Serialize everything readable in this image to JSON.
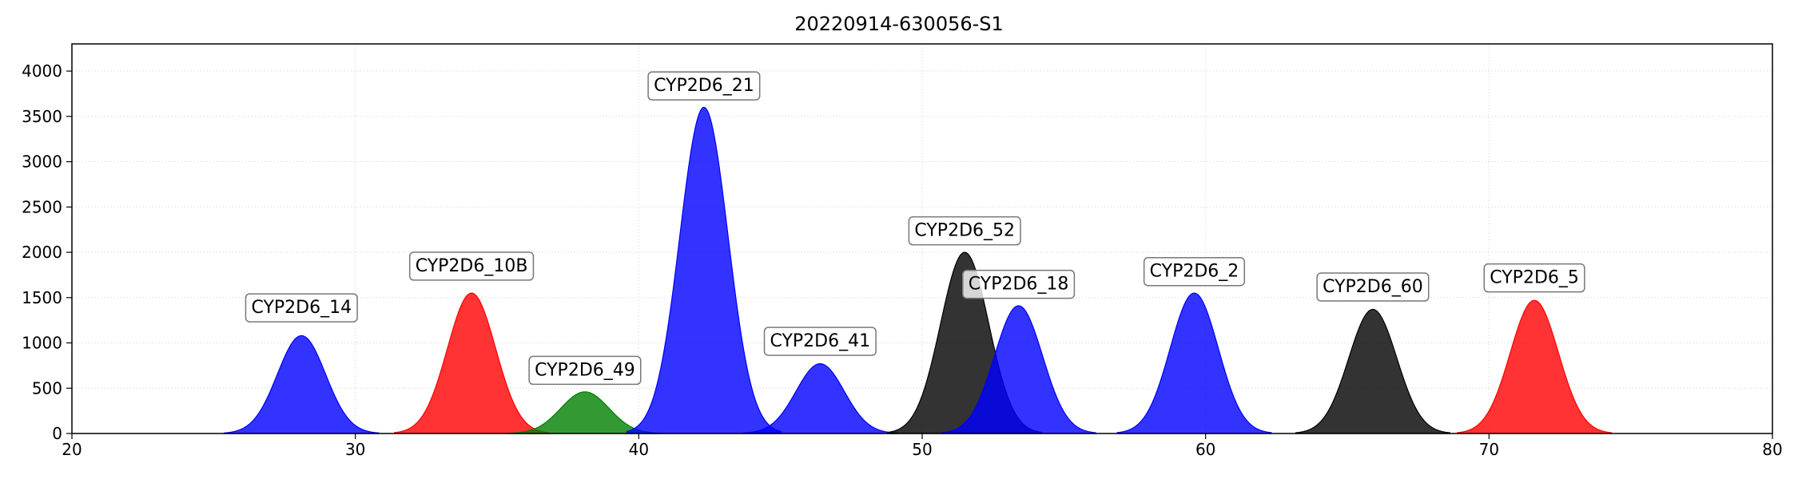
{
  "chart_data": {
    "type": "area",
    "title": "20220914-630056-S1",
    "xlabel": "",
    "ylabel": "",
    "xlim": [
      20,
      80
    ],
    "ylim": [
      0,
      4300
    ],
    "xticks": [
      20,
      30,
      40,
      50,
      60,
      70,
      80
    ],
    "yticks": [
      0,
      500,
      1000,
      1500,
      2000,
      2500,
      3000,
      3500,
      4000
    ],
    "grid": true,
    "peaks": [
      {
        "label": "CYP2D6_14",
        "x": 28.1,
        "height": 1080,
        "sigma": 0.85,
        "color": "#0000ff",
        "label_y": 1400
      },
      {
        "label": "CYP2D6_10B",
        "x": 34.1,
        "height": 1550,
        "sigma": 0.85,
        "color": "#ff0000",
        "label_y": 1860
      },
      {
        "label": "CYP2D6_49",
        "x": 38.1,
        "height": 460,
        "sigma": 0.85,
        "color": "#008000",
        "label_y": 710
      },
      {
        "label": "CYP2D6_21",
        "x": 42.3,
        "height": 3600,
        "sigma": 0.85,
        "color": "#0000ff",
        "label_y": 3850
      },
      {
        "label": "CYP2D6_41",
        "x": 46.4,
        "height": 770,
        "sigma": 0.85,
        "color": "#0000ff",
        "label_y": 1030
      },
      {
        "label": "CYP2D6_52",
        "x": 51.5,
        "height": 2000,
        "sigma": 0.85,
        "color": "#000000",
        "label_y": 2250
      },
      {
        "label": "CYP2D6_18",
        "x": 53.4,
        "height": 1410,
        "sigma": 0.85,
        "color": "#0000ff",
        "label_y": 1660
      },
      {
        "label": "CYP2D6_2",
        "x": 59.6,
        "height": 1550,
        "sigma": 0.85,
        "color": "#0000ff",
        "label_y": 1800
      },
      {
        "label": "CYP2D6_60",
        "x": 65.9,
        "height": 1370,
        "sigma": 0.85,
        "color": "#000000",
        "label_y": 1630
      },
      {
        "label": "CYP2D6_5",
        "x": 71.6,
        "height": 1470,
        "sigma": 0.85,
        "color": "#ff0000",
        "label_y": 1730
      }
    ]
  }
}
